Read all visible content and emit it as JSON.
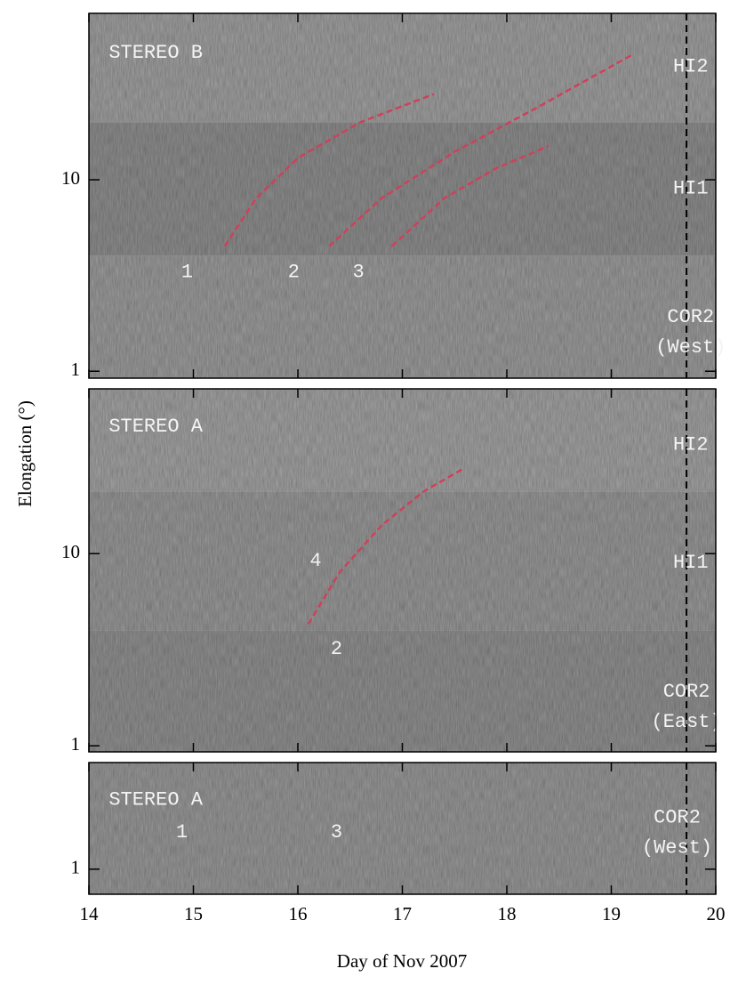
{
  "ylabel": "Elongation (°)",
  "xlabel": "Day of Nov 2007",
  "vline": 19.72,
  "chart_data": [
    {
      "type": "line",
      "log_y": true,
      "xlim": [
        14,
        20
      ],
      "ylim": [
        0.92,
        74
      ],
      "yticks": [
        1,
        10
      ],
      "regions": [
        {
          "range": [
            20,
            74
          ],
          "color": "#8c8c8c"
        },
        {
          "range": [
            4,
            20
          ],
          "color": "#7c7c7c"
        },
        {
          "range": [
            0.92,
            4
          ],
          "color": "#888888"
        }
      ],
      "series": [
        {
          "color": "#d0405a",
          "x": [
            15.3,
            15.6,
            16.0,
            16.6,
            17.3
          ],
          "values": [
            4.5,
            8,
            13,
            20,
            28
          ]
        },
        {
          "color": "#d0405a",
          "x": [
            16.3,
            16.8,
            17.5,
            18.3,
            19.2
          ],
          "values": [
            4.5,
            8,
            14,
            24,
            45
          ]
        },
        {
          "color": "#d0405a",
          "x": [
            16.9,
            17.4,
            17.9,
            18.4
          ],
          "values": [
            4.5,
            8,
            11.5,
            15
          ]
        }
      ],
      "annotations": [
        {
          "text": [
            "STEREO B"
          ],
          "x": 14.19,
          "y": 46,
          "anchor": "start"
        },
        {
          "text": [
            "HI2"
          ],
          "x": 19.76,
          "y": 39,
          "anchor": "middle"
        },
        {
          "text": [
            "HI1"
          ],
          "x": 19.76,
          "y": 9,
          "anchor": "middle"
        },
        {
          "text": [
            "COR2",
            "(West)"
          ],
          "x": 19.76,
          "y": 1.6,
          "anchor": "middle"
        },
        {
          "text": [
            "1"
          ],
          "x": 14.94,
          "y": 3.3,
          "anchor": "middle"
        },
        {
          "text": [
            "2"
          ],
          "x": 15.96,
          "y": 3.3,
          "anchor": "middle"
        },
        {
          "text": [
            "3"
          ],
          "x": 16.58,
          "y": 3.3,
          "anchor": "middle"
        }
      ]
    },
    {
      "type": "line",
      "log_y": true,
      "xlim": [
        14,
        20
      ],
      "ylim": [
        0.93,
        72
      ],
      "yticks": [
        1,
        10
      ],
      "regions": [
        {
          "range": [
            21,
            72
          ],
          "color": "#8e8e8e"
        },
        {
          "range": [
            4,
            21
          ],
          "color": "#858585"
        },
        {
          "range": [
            0.93,
            4
          ],
          "color": "#7e7e7e"
        }
      ],
      "series": [
        {
          "color": "#d0405a",
          "x": [
            16.1,
            16.4,
            16.8,
            17.2,
            17.6
          ],
          "values": [
            4.3,
            8,
            14,
            21,
            28
          ]
        }
      ],
      "annotations": [
        {
          "text": [
            "STEREO A"
          ],
          "x": 14.19,
          "y": 46,
          "anchor": "start"
        },
        {
          "text": [
            "HI2"
          ],
          "x": 19.76,
          "y": 37,
          "anchor": "middle"
        },
        {
          "text": [
            "HI1"
          ],
          "x": 19.76,
          "y": 9,
          "anchor": "middle"
        },
        {
          "text": [
            "COR2",
            "(East)"
          ],
          "x": 19.72,
          "y": 1.6,
          "anchor": "middle"
        },
        {
          "text": [
            "4"
          ],
          "x": 16.17,
          "y": 9.2,
          "anchor": "middle"
        },
        {
          "text": [
            "2"
          ],
          "x": 16.37,
          "y": 3.2,
          "anchor": "middle"
        }
      ]
    },
    {
      "type": "line",
      "log_y": true,
      "xlim": [
        14,
        20
      ],
      "ylim": [
        0.74,
        3.6
      ],
      "yticks": [
        1
      ],
      "xticks": [
        14,
        15,
        16,
        17,
        18,
        19,
        20
      ],
      "regions": [
        {
          "range": [
            0.74,
            3.6
          ],
          "color": "#858585"
        }
      ],
      "series": [],
      "annotations": [
        {
          "text": [
            "STEREO A"
          ],
          "x": 14.19,
          "y": 2.3,
          "anchor": "start"
        },
        {
          "text": [
            "COR2",
            "(West)"
          ],
          "x": 19.63,
          "y": 1.55,
          "anchor": "middle"
        },
        {
          "text": [
            "1"
          ],
          "x": 14.89,
          "y": 1.56,
          "anchor": "middle"
        },
        {
          "text": [
            "3"
          ],
          "x": 16.37,
          "y": 1.56,
          "anchor": "middle"
        }
      ]
    }
  ]
}
